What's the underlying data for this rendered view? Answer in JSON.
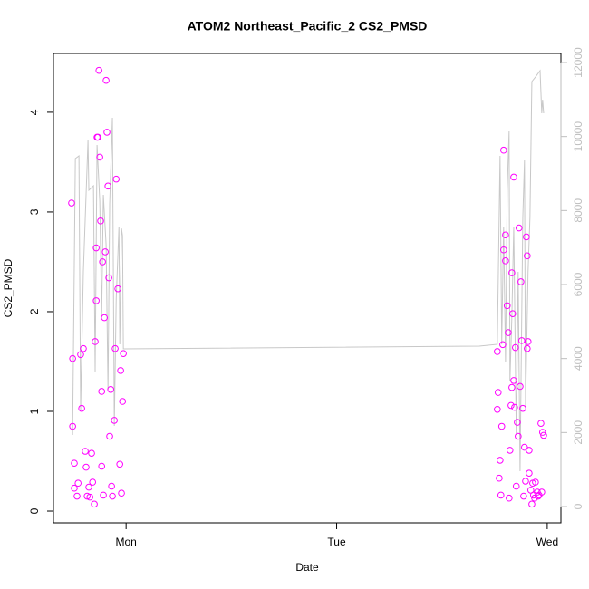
{
  "chart_data": {
    "type": "scatter",
    "title": "ATOM2 Northeast_Pacific_2 CS2_PMSD",
    "xlabel": "Date",
    "ylabel": "CS2_PMSD",
    "xlim": [
      0.655,
      3.065
    ],
    "xticks": [
      {
        "value": 1,
        "label": "Mon"
      },
      {
        "value": 2,
        "label": "Tue"
      },
      {
        "value": 3,
        "label": "Wed"
      }
    ],
    "ylim": [
      -0.118,
      4.59
    ],
    "yticks": [
      0,
      1,
      2,
      3,
      4
    ],
    "y2lim": [
      -441,
      12245
    ],
    "y2ticks": [
      0,
      2000,
      4000,
      6000,
      8000,
      10000,
      12000
    ],
    "y2color": "#bebebe",
    "series": [
      {
        "style": "line",
        "axis": "y2",
        "color": "#c8c8c8",
        "x": [
          0.746,
          0.759,
          0.776,
          0.784,
          0.797,
          0.819,
          0.823,
          0.845,
          0.853,
          0.862,
          0.875,
          0.884,
          0.892,
          0.905,
          0.914,
          0.922,
          0.935,
          0.944,
          0.953,
          0.966,
          0.97,
          0.978,
          0.983,
          0.987,
          2.677,
          2.763,
          2.776,
          2.784,
          2.793,
          2.802,
          2.81,
          2.819,
          2.823,
          2.832,
          2.841,
          2.853,
          2.862,
          2.871,
          2.884,
          2.892,
          2.897,
          2.909,
          2.918,
          2.927,
          2.944,
          2.966,
          2.974,
          2.978,
          2.983
        ],
        "values": [
          1935,
          9404,
          9478,
          2620,
          6343,
          9894,
          8547,
          8669,
          3649,
          9772,
          8253,
          5118,
          8424,
          7078,
          3159,
          8180,
          10506,
          2180,
          5608,
          7567,
          4384,
          7518,
          7322,
          4261,
          4335,
          4384,
          9478,
          4384,
          7567,
          3894,
          8547,
          10139,
          3404,
          5118,
          7567,
          1935,
          6343,
          955,
          7812,
          9355,
          2669,
          6343,
          7812,
          11486,
          11608,
          11780,
          10629,
          10996,
          10629
        ]
      },
      {
        "style": "points",
        "axis": "y",
        "color": "#ff00ff",
        "x": [
          0.741,
          0.746,
          0.746,
          0.754,
          0.754,
          0.767,
          0.772,
          0.784,
          0.789,
          0.797,
          0.806,
          0.81,
          0.815,
          0.823,
          0.828,
          0.836,
          0.841,
          0.849,
          0.853,
          0.858,
          0.858,
          0.862,
          0.866,
          0.871,
          0.875,
          0.879,
          0.884,
          0.884,
          0.888,
          0.892,
          0.897,
          0.901,
          0.905,
          0.909,
          0.914,
          0.918,
          0.922,
          0.927,
          0.931,
          0.935,
          0.944,
          0.948,
          0.953,
          0.961,
          0.97,
          0.974,
          0.978,
          0.983,
          0.987,
          2.763,
          2.767,
          2.763,
          2.772,
          2.776,
          2.78,
          2.784,
          2.789,
          2.793,
          2.793,
          2.802,
          2.802,
          2.81,
          2.815,
          2.819,
          2.823,
          2.828,
          2.832,
          2.832,
          2.836,
          2.841,
          2.841,
          2.845,
          2.849,
          2.853,
          2.858,
          2.862,
          2.866,
          2.871,
          2.875,
          2.879,
          2.884,
          2.888,
          2.892,
          2.897,
          2.901,
          2.905,
          2.905,
          2.909,
          2.914,
          2.914,
          2.922,
          2.927,
          2.931,
          2.935,
          2.94,
          2.944,
          2.953,
          2.957,
          2.961,
          2.97,
          2.974,
          2.978,
          2.983
        ],
        "values": [
          3.09,
          1.53,
          0.85,
          0.48,
          0.23,
          0.15,
          0.28,
          1.57,
          1.03,
          1.63,
          0.6,
          0.44,
          0.15,
          0.24,
          0.14,
          0.58,
          0.29,
          0.07,
          1.7,
          2.11,
          2.64,
          3.75,
          3.75,
          4.42,
          3.55,
          2.91,
          1.2,
          0.45,
          2.5,
          0.16,
          1.94,
          2.6,
          4.32,
          3.8,
          3.26,
          2.34,
          0.75,
          1.22,
          0.25,
          0.15,
          0.91,
          1.63,
          3.33,
          2.23,
          0.47,
          1.41,
          0.18,
          1.1,
          1.58,
          1.6,
          1.19,
          1.02,
          0.33,
          0.51,
          0.16,
          0.85,
          1.67,
          3.62,
          2.62,
          2.77,
          2.51,
          2.06,
          1.79,
          0.13,
          0.61,
          1.06,
          1.24,
          2.39,
          1.98,
          3.35,
          1.31,
          1.04,
          1.64,
          0.25,
          0.89,
          0.75,
          2.84,
          1.25,
          2.3,
          1.71,
          1.03,
          0.15,
          0.64,
          0.3,
          2.75,
          2.56,
          1.63,
          1.7,
          0.61,
          0.38,
          0.21,
          0.07,
          0.28,
          0.16,
          0.13,
          0.29,
          0.19,
          0.15,
          0.16,
          0.88,
          0.19,
          0.79,
          0.76
        ]
      }
    ]
  }
}
